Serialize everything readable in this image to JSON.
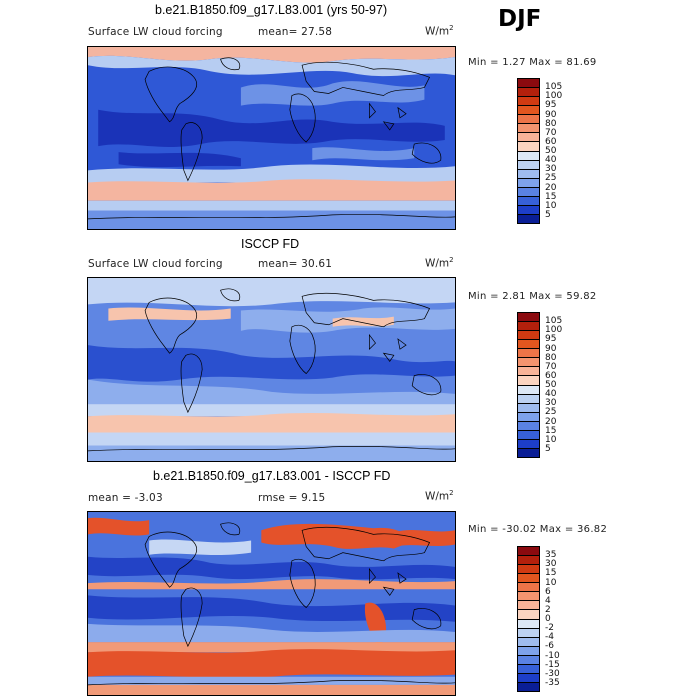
{
  "season": "DJF",
  "panels": [
    {
      "title": "b.e21.B1850.f09_g17.L83.001 (yrs 50-97)",
      "field_label": "Surface LW cloud forcing",
      "stat_text": "mean=  27.58",
      "rmse_text": "",
      "units": "W/m",
      "units_sup": "2",
      "minmax": "Min =   1.27 Max =  81.69",
      "colorbar": {
        "labels": [
          "105",
          "100",
          "95",
          "90",
          "80",
          "70",
          "60",
          "50",
          "40",
          "30",
          "25",
          "20",
          "15",
          "10",
          "5"
        ],
        "colors": [
          "#8b0a0f",
          "#b3200c",
          "#d03a12",
          "#e2561f",
          "#ed7448",
          "#f4946f",
          "#f8b398",
          "#fbd4c0",
          "#dde8f6",
          "#bdd2f2",
          "#9fbcef",
          "#7ea2eb",
          "#5a82e3",
          "#3760d8",
          "#1d3ec9",
          "#0a1e96"
        ]
      },
      "map_colors": {
        "base": "#2f58d6",
        "deep": "#1a33b8",
        "mid": "#6d92e6",
        "light": "#b7cdf2",
        "warm": "#f4b5a0",
        "hot": "#ea7b5b"
      }
    },
    {
      "title": "ISCCP FD",
      "field_label": "Surface LW cloud forcing",
      "stat_text": "mean=  30.61",
      "rmse_text": "",
      "units": "W/m",
      "units_sup": "2",
      "minmax": "Min =   2.81 Max =  59.82",
      "colorbar": {
        "labels": [
          "105",
          "100",
          "95",
          "90",
          "80",
          "70",
          "60",
          "50",
          "40",
          "30",
          "25",
          "20",
          "15",
          "10",
          "5"
        ],
        "colors": [
          "#8b0a0f",
          "#b3200c",
          "#d03a12",
          "#e2561f",
          "#ed7448",
          "#f4946f",
          "#f8b398",
          "#fbd4c0",
          "#dde8f6",
          "#bdd2f2",
          "#9fbcef",
          "#7ea2eb",
          "#5a82e3",
          "#3760d8",
          "#1d3ec9",
          "#0a1e96"
        ]
      },
      "map_colors": {
        "base": "#5f86e3",
        "deep": "#2a50cf",
        "mid": "#8eaeed",
        "light": "#c4d6f4",
        "warm": "#f7c4ad",
        "hot": "#f0a484"
      }
    },
    {
      "title": "b.e21.B1850.f09_g17.L83.001 - ISCCP FD",
      "field_label": "",
      "stat_text": "mean =  -3.03",
      "rmse_text": "rmse =   9.15",
      "units": "W/m",
      "units_sup": "2",
      "minmax": "Min = -30.02 Max =  36.82",
      "colorbar": {
        "labels": [
          "35",
          "30",
          "15",
          "10",
          "6",
          "4",
          "2",
          "0",
          "-2",
          "-4",
          "-6",
          "-10",
          "-15",
          "-30",
          "-35"
        ],
        "colors": [
          "#8b0a0f",
          "#b3200c",
          "#d03a12",
          "#e2561f",
          "#ed7448",
          "#f4946f",
          "#f8b398",
          "#fbd4c0",
          "#dde8f6",
          "#bdd2f2",
          "#9fbcef",
          "#7ea2eb",
          "#5a82e3",
          "#3760d8",
          "#1d3ec9",
          "#0a1e96"
        ]
      },
      "map_colors": {
        "base": "#4a73dd",
        "deep": "#2343c6",
        "mid": "#8cabec",
        "light": "#c6d7f4",
        "warm": "#f19a78",
        "hot": "#e4522a"
      }
    }
  ]
}
